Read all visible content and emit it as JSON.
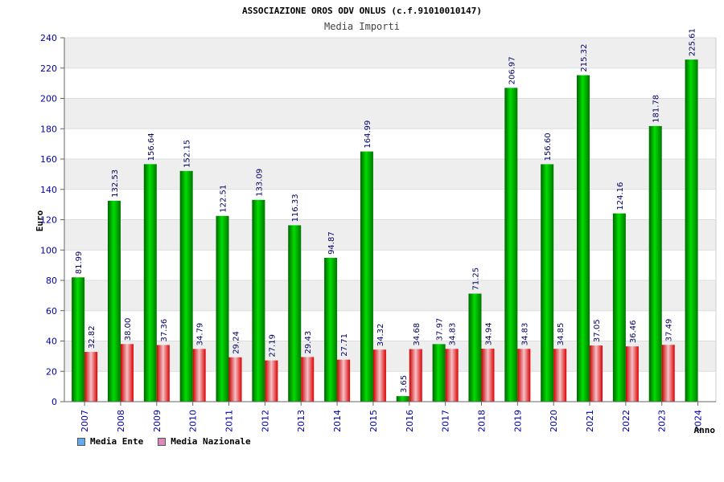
{
  "chart_data": {
    "type": "bar",
    "title": "ASSOCIAZIONE OROS ODV ONLUS (c.f.91010010147)",
    "subtitle": "Media Importi",
    "xlabel": "Anno",
    "ylabel": "Euro",
    "ylim": [
      0,
      240
    ],
    "yticks": [
      "0",
      "20",
      "40",
      "60",
      "80",
      "100",
      "120",
      "140",
      "160",
      "180",
      "200",
      "220",
      "240"
    ],
    "grid": true,
    "legend_position": "bottom-left",
    "categories": [
      "2007",
      "2008",
      "2009",
      "2010",
      "2011",
      "2012",
      "2013",
      "2014",
      "2015",
      "2016",
      "2017",
      "2018",
      "2019",
      "2020",
      "2021",
      "2022",
      "2023",
      "2024"
    ],
    "series": [
      {
        "name": "Media Ente",
        "values": [
          81.99,
          132.53,
          156.64,
          152.15,
          122.51,
          133.09,
          116.33,
          94.87,
          164.99,
          3.65,
          37.97,
          71.25,
          206.97,
          156.6,
          215.32,
          124.16,
          181.78,
          225.61
        ],
        "labels": [
          "81.99",
          "132.53",
          "156.64",
          "152.15",
          "122.51",
          "133.09",
          "116.33",
          "94.87",
          "164.99",
          "3.65",
          "37.97",
          "71.25",
          "206.97",
          "156.60",
          "215.32",
          "124.16",
          "181.78",
          "225.61"
        ]
      },
      {
        "name": "Media Nazionale",
        "values": [
          32.82,
          38.0,
          37.36,
          34.79,
          29.24,
          27.19,
          29.43,
          27.71,
          34.32,
          34.68,
          34.83,
          34.94,
          34.83,
          34.85,
          37.05,
          36.46,
          37.49,
          null
        ],
        "labels": [
          "32.82",
          "38.00",
          "37.36",
          "34.79",
          "29.24",
          "27.19",
          "29.43",
          "27.71",
          "34.32",
          "34.68",
          "34.83",
          "34.94",
          "34.83",
          "34.85",
          "37.05",
          "36.46",
          "37.49",
          ""
        ]
      }
    ],
    "colors": {
      "ente_bar": "#00bb00",
      "ente_bar_dark": "#006600",
      "nazionale_bar": "#ff2222",
      "nazionale_bar_light": "#f2b8c0",
      "ente_legend": "#66aaee",
      "nazionale_legend": "#dd88bb",
      "axis_text": "#0000aa",
      "band": "#eeeeee"
    }
  },
  "legend": [
    {
      "label": "Media Ente",
      "color": "#66aaee"
    },
    {
      "label": "Media Nazionale",
      "color": "#dd88bb"
    }
  ]
}
